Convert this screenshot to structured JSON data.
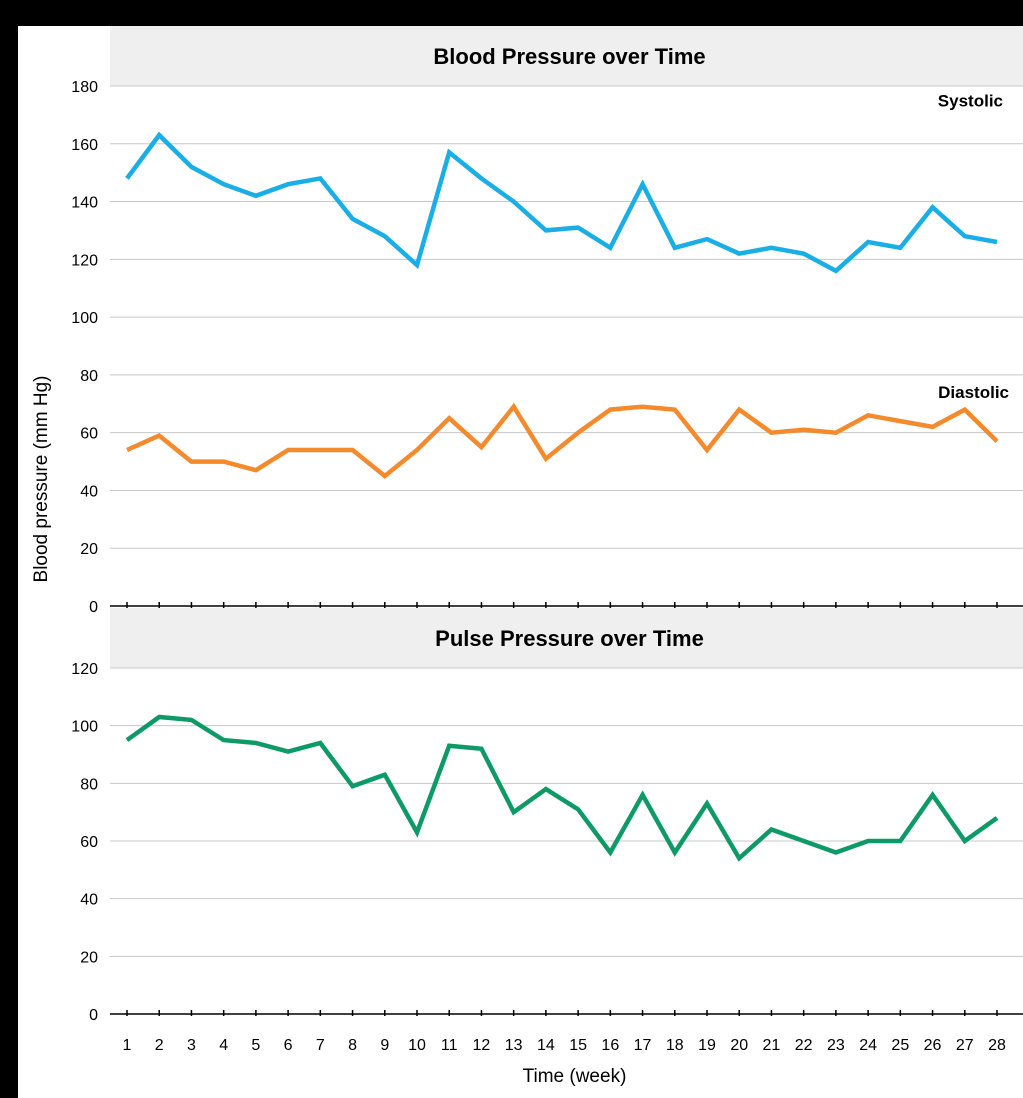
{
  "chart_data": [
    {
      "type": "line",
      "title": "Blood Pressure over Time",
      "ylabel": "Blood pressure (mm Hg)",
      "ylim": [
        0,
        180
      ],
      "yticks": [
        0,
        20,
        40,
        60,
        80,
        100,
        120,
        140,
        160,
        180
      ],
      "grid": true,
      "x": [
        1,
        2,
        3,
        4,
        5,
        6,
        7,
        8,
        9,
        10,
        11,
        12,
        13,
        14,
        15,
        16,
        17,
        18,
        19,
        20,
        21,
        22,
        23,
        24,
        25,
        26,
        27,
        28
      ],
      "series": [
        {
          "name": "Systolic",
          "color": "#1aaee6",
          "values": [
            148,
            163,
            152,
            146,
            142,
            146,
            148,
            134,
            128,
            118,
            157,
            148,
            140,
            130,
            131,
            124,
            146,
            124,
            127,
            122,
            124,
            122,
            116,
            126,
            124,
            138,
            128,
            126
          ]
        },
        {
          "name": "Diastolic",
          "color": "#f58a2c",
          "values": [
            54,
            59,
            50,
            50,
            47,
            54,
            54,
            54,
            45,
            54,
            65,
            55,
            69,
            51,
            60,
            68,
            69,
            68,
            54,
            68,
            60,
            61,
            60,
            66,
            64,
            62,
            68,
            57
          ]
        }
      ]
    },
    {
      "type": "line",
      "title": "Pulse Pressure over Time",
      "xlabel": "Time (week)",
      "ylim": [
        0,
        120
      ],
      "yticks": [
        0,
        20,
        40,
        60,
        80,
        100,
        120
      ],
      "grid": true,
      "x": [
        1,
        2,
        3,
        4,
        5,
        6,
        7,
        8,
        9,
        10,
        11,
        12,
        13,
        14,
        15,
        16,
        17,
        18,
        19,
        20,
        21,
        22,
        23,
        24,
        25,
        26,
        27,
        28
      ],
      "series": [
        {
          "color": "#0e9a66",
          "values": [
            95,
            103,
            102,
            95,
            94,
            91,
            94,
            79,
            83,
            63,
            93,
            92,
            70,
            78,
            71,
            56,
            76,
            56,
            73,
            54,
            64,
            60,
            56,
            60,
            60,
            76,
            60,
            68
          ]
        }
      ]
    }
  ]
}
